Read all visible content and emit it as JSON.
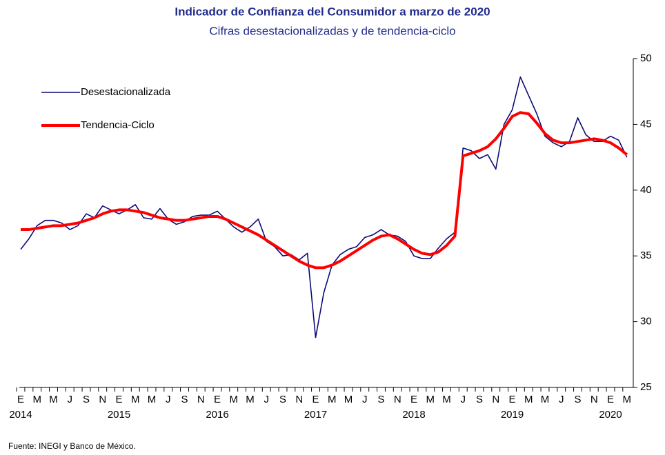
{
  "chart_data": {
    "type": "line",
    "title": "Indicador de Confianza del Consumidor a marzo de 2020",
    "subtitle": "Cifras desestacionalizadas y de tendencia-ciclo",
    "source": "Fuente: INEGI y Banco de México.",
    "categories": [
      "E",
      null,
      "M",
      null,
      "M",
      null,
      "J",
      null,
      "S",
      null,
      "N",
      null,
      "E",
      null,
      "M",
      null,
      "M",
      null,
      "J",
      null,
      "S",
      null,
      "N",
      null,
      "E",
      null,
      "M",
      null,
      "M",
      null,
      "J",
      null,
      "S",
      null,
      "N",
      null,
      "E",
      null,
      "M",
      null,
      "M",
      null,
      "J",
      null,
      "S",
      null,
      "N",
      null,
      "E",
      null,
      "M",
      null,
      "M",
      null,
      "J",
      null,
      "S",
      null,
      "N",
      null,
      "E",
      null,
      "M",
      null,
      "M",
      null,
      "J",
      null,
      "S",
      null,
      "N",
      null,
      "E",
      null,
      "M"
    ],
    "years": [
      "2014",
      "2015",
      "2016",
      "2017",
      "2018",
      "2019",
      "2020"
    ],
    "ylim": [
      25,
      50
    ],
    "yticks": [
      25,
      30,
      35,
      40,
      45,
      50
    ],
    "legend": "upper left",
    "series": [
      {
        "name": "Desestacionalizada",
        "color": "#0a0a78",
        "values": [
          35.5,
          36.3,
          37.3,
          37.7,
          37.7,
          37.5,
          37.0,
          37.3,
          38.2,
          37.9,
          38.8,
          38.5,
          38.2,
          38.5,
          38.9,
          37.9,
          37.8,
          38.6,
          37.8,
          37.4,
          37.6,
          38.0,
          38.1,
          38.1,
          38.4,
          37.8,
          37.2,
          36.8,
          37.2,
          37.8,
          36.1,
          35.7,
          35.0,
          35.1,
          34.7,
          35.2,
          28.8,
          32.2,
          34.3,
          35.1,
          35.5,
          35.7,
          36.4,
          36.6,
          37.0,
          36.6,
          36.5,
          36.1,
          35.0,
          34.8,
          34.8,
          35.6,
          36.3,
          36.8,
          43.2,
          43.0,
          42.4,
          42.7,
          41.6,
          45.0,
          46.1,
          48.6,
          47.2,
          45.8,
          44.1,
          43.6,
          43.3,
          43.7,
          45.5,
          44.2,
          43.7,
          43.7,
          44.1,
          43.8,
          42.5
        ]
      },
      {
        "name": "Tendencia-Ciclo",
        "color": "#ff0000",
        "values": [
          37.0,
          37.0,
          37.1,
          37.2,
          37.3,
          37.3,
          37.4,
          37.5,
          37.7,
          37.9,
          38.2,
          38.4,
          38.5,
          38.5,
          38.4,
          38.3,
          38.1,
          37.9,
          37.8,
          37.7,
          37.7,
          37.8,
          37.9,
          38.0,
          38.0,
          37.8,
          37.5,
          37.2,
          36.9,
          36.6,
          36.2,
          35.8,
          35.4,
          35.0,
          34.6,
          34.3,
          34.1,
          34.1,
          34.3,
          34.6,
          35.0,
          35.4,
          35.8,
          36.2,
          36.5,
          36.6,
          36.3,
          35.9,
          35.5,
          35.2,
          35.1,
          35.3,
          35.8,
          36.5,
          42.6,
          42.8,
          43.0,
          43.3,
          43.9,
          44.7,
          45.6,
          45.9,
          45.8,
          45.1,
          44.3,
          43.8,
          43.6,
          43.6,
          43.7,
          43.8,
          43.9,
          43.8,
          43.6,
          43.2,
          42.7
        ]
      }
    ]
  }
}
